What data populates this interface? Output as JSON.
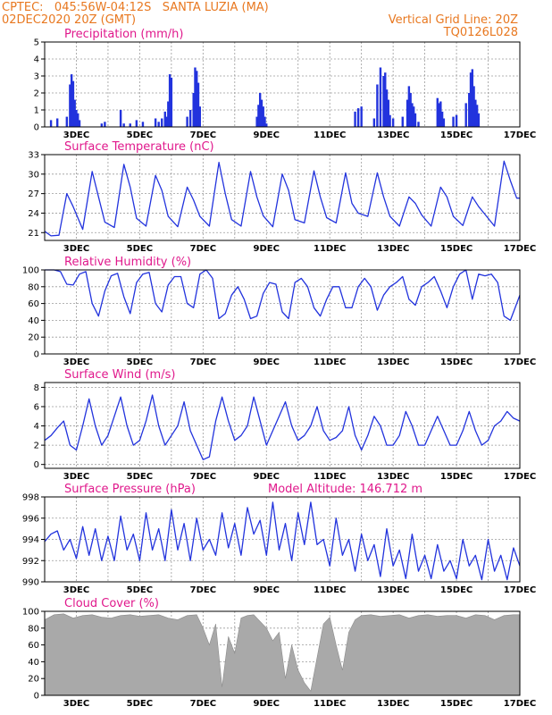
{
  "header": {
    "line1_left": "CPTEC:   045:56W-04:12S   SANTA LUZIA (MA)",
    "line2_left": "02DEC2020 20Z (GMT)",
    "line1_right": "Vertical Grid Line: 20Z",
    "line2_right": "TQ0126L028"
  },
  "colors": {
    "header": "#e87820",
    "panel_title": "#e0198c",
    "series_line": "#2233dd",
    "cloud_fill": "#a9a9a9",
    "grid": "#9a9a9a"
  },
  "x_ticks": [
    "3DEC",
    "5DEC",
    "7DEC",
    "9DEC",
    "11DEC",
    "13DEC",
    "15DEC",
    "17DEC"
  ],
  "chart_data": [
    {
      "id": "precip",
      "type": "bar",
      "title": "Precipitation (mm/h)",
      "ylim": [
        0,
        5
      ],
      "yticks": [
        0,
        1,
        2,
        3,
        4,
        5
      ],
      "xlim_days": [
        2.0,
        17.0
      ],
      "grid": true,
      "x": [
        2.2,
        2.4,
        2.7,
        2.8,
        2.85,
        2.9,
        2.95,
        3.0,
        3.05,
        3.1,
        3.8,
        3.9,
        4.4,
        4.5,
        4.7,
        4.9,
        5.1,
        5.5,
        5.6,
        5.7,
        5.8,
        5.85,
        5.9,
        5.95,
        6.0,
        6.5,
        6.6,
        6.7,
        6.75,
        6.8,
        6.85,
        6.9,
        8.7,
        8.75,
        8.8,
        8.85,
        8.9,
        8.95,
        9.0,
        11.8,
        11.9,
        12.0,
        12.4,
        12.5,
        12.6,
        12.7,
        12.75,
        12.8,
        12.85,
        12.9,
        13.0,
        13.3,
        13.45,
        13.5,
        13.55,
        13.6,
        13.65,
        13.7,
        13.8,
        14.4,
        14.45,
        14.5,
        14.55,
        14.6,
        14.9,
        15.0,
        15.3,
        15.4,
        15.45,
        15.5,
        15.55,
        15.6,
        15.65,
        15.7
      ],
      "values": [
        0.4,
        0.5,
        0.6,
        2.5,
        3.1,
        2.7,
        1.6,
        1.0,
        0.8,
        0.4,
        0.2,
        0.3,
        1.0,
        0.2,
        0.2,
        0.4,
        0.3,
        0.5,
        0.3,
        0.5,
        0.9,
        0.6,
        1.5,
        3.1,
        2.9,
        0.6,
        1.0,
        2.0,
        3.5,
        3.3,
        2.6,
        1.2,
        0.6,
        1.3,
        2.0,
        1.6,
        1.2,
        0.6,
        0.2,
        0.9,
        1.1,
        1.2,
        0.5,
        2.5,
        3.5,
        3.0,
        3.2,
        2.2,
        1.6,
        0.7,
        0.5,
        0.6,
        1.6,
        2.4,
        2.0,
        1.4,
        1.2,
        0.8,
        0.3,
        1.7,
        1.4,
        1.5,
        0.9,
        0.5,
        0.6,
        0.7,
        1.4,
        2.0,
        3.2,
        3.4,
        2.4,
        1.6,
        1.3,
        0.8
      ]
    },
    {
      "id": "temp",
      "type": "line",
      "title": "Surface Temperature (nC)",
      "ylim": [
        19.8,
        33
      ],
      "yticks": [
        21,
        24,
        27,
        30,
        33
      ],
      "xlim_days": [
        2.0,
        17.0
      ],
      "grid": true,
      "x": [
        2.0,
        2.2,
        2.45,
        2.7,
        2.9,
        3.2,
        3.5,
        3.7,
        3.9,
        4.2,
        4.5,
        4.7,
        4.9,
        5.2,
        5.5,
        5.7,
        5.9,
        6.2,
        6.5,
        6.7,
        6.9,
        7.2,
        7.5,
        7.7,
        7.9,
        8.2,
        8.5,
        8.7,
        8.9,
        9.2,
        9.5,
        9.7,
        9.9,
        10.2,
        10.5,
        10.7,
        10.9,
        11.2,
        11.5,
        11.7,
        11.9,
        12.2,
        12.5,
        12.7,
        12.9,
        13.2,
        13.5,
        13.7,
        13.9,
        14.2,
        14.5,
        14.7,
        14.9,
        15.2,
        15.5,
        15.7,
        15.9,
        16.2,
        16.5,
        16.7,
        16.9,
        17.0
      ],
      "values": [
        21.2,
        20.5,
        20.6,
        27.0,
        25.0,
        21.5,
        30.4,
        26.5,
        22.6,
        21.8,
        31.5,
        28.0,
        23.2,
        22.0,
        29.8,
        27.5,
        23.5,
        21.9,
        28.0,
        26.0,
        23.5,
        22.0,
        31.8,
        27.0,
        23.0,
        22.0,
        30.4,
        26.5,
        23.6,
        21.9,
        30.0,
        27.5,
        23.0,
        22.5,
        30.5,
        26.5,
        23.3,
        22.5,
        30.2,
        25.5,
        24.0,
        23.5,
        30.2,
        26.5,
        23.5,
        22.0,
        26.5,
        25.5,
        23.7,
        22.0,
        28.0,
        26.5,
        23.5,
        22.1,
        26.5,
        25.0,
        23.8,
        22.0,
        32.0,
        29.0,
        26.3,
        26.3
      ]
    },
    {
      "id": "rh",
      "type": "line",
      "title": "Relative Humidity (%)",
      "ylim": [
        0,
        100
      ],
      "yticks": [
        0,
        20,
        40,
        60,
        80,
        100
      ],
      "xlim_days": [
        2.0,
        17.0
      ],
      "grid": true,
      "x": [
        2.0,
        2.3,
        2.5,
        2.7,
        2.9,
        3.1,
        3.3,
        3.5,
        3.7,
        3.9,
        4.1,
        4.3,
        4.5,
        4.7,
        4.9,
        5.1,
        5.3,
        5.5,
        5.7,
        5.9,
        6.1,
        6.3,
        6.5,
        6.7,
        6.9,
        7.1,
        7.3,
        7.5,
        7.7,
        7.9,
        8.1,
        8.3,
        8.5,
        8.7,
        8.9,
        9.1,
        9.3,
        9.5,
        9.7,
        9.9,
        10.1,
        10.3,
        10.5,
        10.7,
        10.9,
        11.1,
        11.3,
        11.5,
        11.7,
        11.9,
        12.1,
        12.3,
        12.5,
        12.7,
        12.9,
        13.1,
        13.3,
        13.5,
        13.7,
        13.9,
        14.1,
        14.3,
        14.5,
        14.7,
        14.9,
        15.1,
        15.3,
        15.5,
        15.7,
        15.9,
        16.1,
        16.3,
        16.5,
        16.7,
        16.9,
        17.0
      ],
      "values": [
        100,
        100,
        98,
        83,
        82,
        95,
        98,
        60,
        45,
        75,
        93,
        96,
        68,
        48,
        85,
        95,
        97,
        60,
        50,
        82,
        92,
        92,
        60,
        55,
        95,
        100,
        90,
        42,
        48,
        70,
        80,
        65,
        42,
        45,
        72,
        85,
        83,
        50,
        42,
        85,
        90,
        80,
        55,
        45,
        65,
        80,
        80,
        55,
        55,
        80,
        90,
        80,
        52,
        70,
        80,
        85,
        92,
        65,
        58,
        80,
        85,
        92,
        75,
        55,
        80,
        95,
        100,
        65,
        95,
        93,
        95,
        85,
        45,
        40,
        60,
        70
      ]
    },
    {
      "id": "wind",
      "type": "line",
      "title": "Surface Wind (m/s)",
      "ylim": [
        -0.4,
        8.5
      ],
      "yticks": [
        0,
        2,
        4,
        6,
        8
      ],
      "xlim_days": [
        2.0,
        17.0
      ],
      "grid": true,
      "x": [
        2.0,
        2.2,
        2.4,
        2.6,
        2.8,
        3.0,
        3.2,
        3.4,
        3.6,
        3.8,
        4.0,
        4.2,
        4.4,
        4.6,
        4.8,
        5.0,
        5.2,
        5.4,
        5.6,
        5.8,
        6.0,
        6.2,
        6.4,
        6.6,
        6.8,
        7.0,
        7.2,
        7.4,
        7.6,
        7.8,
        8.0,
        8.2,
        8.4,
        8.6,
        8.8,
        9.0,
        9.2,
        9.4,
        9.6,
        9.8,
        10.0,
        10.2,
        10.4,
        10.6,
        10.8,
        11.0,
        11.2,
        11.4,
        11.6,
        11.8,
        12.0,
        12.2,
        12.4,
        12.6,
        12.8,
        13.0,
        13.2,
        13.4,
        13.6,
        13.8,
        14.0,
        14.2,
        14.4,
        14.6,
        14.8,
        15.0,
        15.2,
        15.4,
        15.6,
        15.8,
        16.0,
        16.2,
        16.4,
        16.6,
        16.8,
        17.0
      ],
      "values": [
        2.5,
        3.0,
        3.8,
        4.5,
        2.0,
        1.5,
        4.0,
        6.8,
        4.0,
        2.0,
        3.0,
        5.0,
        7.0,
        4.0,
        2.0,
        2.5,
        4.5,
        7.2,
        4.0,
        2.0,
        3.0,
        4.0,
        6.5,
        3.5,
        2.0,
        0.5,
        0.8,
        4.5,
        7.0,
        4.5,
        2.5,
        3.0,
        4.0,
        7.0,
        4.5,
        2.0,
        3.5,
        5.0,
        6.5,
        4.0,
        2.5,
        3.0,
        4.0,
        6.0,
        3.5,
        2.5,
        2.8,
        3.5,
        6.0,
        3.0,
        1.5,
        3.0,
        5.0,
        4.0,
        2.0,
        2.0,
        3.0,
        5.5,
        4.0,
        2.0,
        2.0,
        3.5,
        5.0,
        3.5,
        2.0,
        2.0,
        3.5,
        5.5,
        3.5,
        2.0,
        2.5,
        4.0,
        4.5,
        5.5,
        4.8,
        4.5
      ]
    },
    {
      "id": "pressure",
      "type": "line",
      "title": "Surface Pressure (hPa)",
      "annotation": "Model Altitude: 146.712 m",
      "ylim": [
        990,
        998
      ],
      "yticks": [
        990,
        992,
        994,
        996,
        998
      ],
      "xlim_days": [
        2.0,
        17.0
      ],
      "grid": true,
      "x": [
        2.0,
        2.2,
        2.4,
        2.6,
        2.8,
        3.0,
        3.2,
        3.4,
        3.6,
        3.8,
        4.0,
        4.2,
        4.4,
        4.6,
        4.8,
        5.0,
        5.2,
        5.4,
        5.6,
        5.8,
        6.0,
        6.2,
        6.4,
        6.6,
        6.8,
        7.0,
        7.2,
        7.4,
        7.6,
        7.8,
        8.0,
        8.2,
        8.4,
        8.6,
        8.8,
        9.0,
        9.2,
        9.4,
        9.6,
        9.8,
        10.0,
        10.2,
        10.4,
        10.6,
        10.8,
        11.0,
        11.2,
        11.4,
        11.6,
        11.8,
        12.0,
        12.2,
        12.4,
        12.6,
        12.8,
        13.0,
        13.2,
        13.4,
        13.6,
        13.8,
        14.0,
        14.2,
        14.4,
        14.6,
        14.8,
        15.0,
        15.2,
        15.4,
        15.6,
        15.8,
        16.0,
        16.2,
        16.4,
        16.6,
        16.8,
        17.0
      ],
      "values": [
        993.8,
        994.5,
        994.8,
        993.0,
        994.0,
        992.2,
        995.2,
        992.5,
        995.0,
        992.0,
        994.3,
        992.0,
        996.2,
        993.0,
        994.5,
        992.0,
        996.5,
        993.0,
        995.0,
        992.0,
        996.8,
        993.0,
        995.5,
        992.0,
        996.0,
        993.0,
        994.0,
        992.5,
        996.5,
        993.2,
        995.5,
        992.5,
        997.0,
        994.5,
        995.8,
        992.5,
        997.5,
        993.0,
        995.5,
        992.0,
        996.5,
        993.5,
        997.5,
        993.5,
        994.0,
        991.5,
        996.0,
        992.5,
        994.0,
        991.0,
        994.5,
        992.0,
        993.5,
        990.5,
        995.0,
        991.5,
        993.0,
        990.3,
        994.5,
        991.0,
        992.5,
        990.3,
        993.5,
        991.0,
        992.0,
        990.3,
        994.0,
        991.5,
        992.5,
        990.2,
        994.0,
        991.0,
        992.5,
        990.2,
        993.2,
        991.5
      ]
    },
    {
      "id": "cloud",
      "type": "area",
      "title": "Cloud Cover (%)",
      "ylim": [
        0,
        100
      ],
      "yticks": [
        0,
        20,
        40,
        60,
        80,
        100
      ],
      "xlim_days": [
        2.0,
        17.0
      ],
      "grid": true,
      "x": [
        2.0,
        2.3,
        2.6,
        2.9,
        3.2,
        3.5,
        3.8,
        4.1,
        4.4,
        4.7,
        5.0,
        5.3,
        5.6,
        5.9,
        6.2,
        6.5,
        6.8,
        7.0,
        7.2,
        7.4,
        7.6,
        7.8,
        8.0,
        8.2,
        8.4,
        8.6,
        8.8,
        9.0,
        9.2,
        9.4,
        9.6,
        9.8,
        10.0,
        10.2,
        10.4,
        10.6,
        10.8,
        11.0,
        11.2,
        11.4,
        11.6,
        11.8,
        12.0,
        12.3,
        12.6,
        12.9,
        13.2,
        13.5,
        13.8,
        14.1,
        14.4,
        14.7,
        15.0,
        15.3,
        15.6,
        15.9,
        16.2,
        16.5,
        16.8,
        17.0
      ],
      "values": [
        90,
        96,
        97,
        92,
        95,
        96,
        93,
        92,
        95,
        96,
        94,
        95,
        96,
        92,
        90,
        95,
        96,
        80,
        60,
        85,
        10,
        70,
        50,
        92,
        95,
        96,
        88,
        80,
        65,
        75,
        20,
        60,
        30,
        15,
        5,
        45,
        85,
        93,
        60,
        30,
        75,
        90,
        95,
        96,
        94,
        95,
        96,
        92,
        95,
        96,
        94,
        95,
        95,
        92,
        96,
        95,
        90,
        95,
        96,
        96
      ]
    }
  ]
}
